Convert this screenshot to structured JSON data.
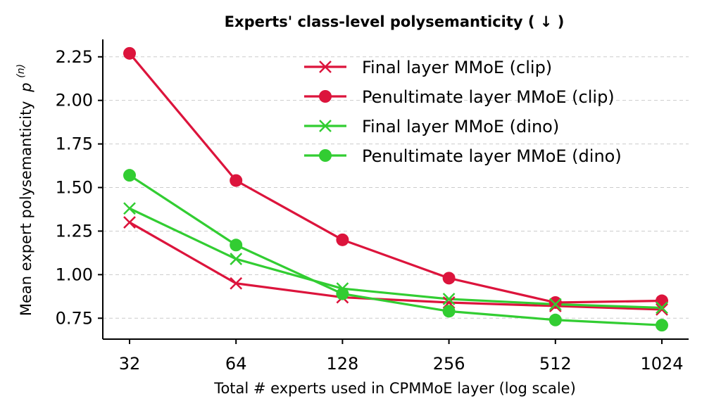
{
  "chart_data": {
    "type": "line",
    "title": "Experts' class-level polysemanticity ( ↓ )",
    "xlabel": "Total # experts used in CPMMoE layer (log scale)",
    "ylabel": "Mean expert polysemanticity",
    "ylabel_symbol": "p",
    "ylabel_superscript": "(n)",
    "x_scale": "log2",
    "categories": [
      "32",
      "64",
      "128",
      "256",
      "512",
      "1024"
    ],
    "x": [
      32,
      64,
      128,
      256,
      512,
      1024
    ],
    "ylim": [
      0.63,
      2.35
    ],
    "yticks": [
      0.75,
      1.0,
      1.25,
      1.5,
      1.75,
      2.0,
      2.25
    ],
    "ytick_labels": [
      "0.75",
      "1.00",
      "1.25",
      "1.50",
      "1.75",
      "2.00",
      "2.25"
    ],
    "grid": "horizontal dashed",
    "legend_position": "top-right",
    "series": [
      {
        "name": "Final layer MMoE (clip)",
        "color": "#dc143c",
        "marker": "x",
        "values": [
          1.3,
          0.95,
          0.87,
          0.84,
          0.82,
          0.8
        ]
      },
      {
        "name": "Penultimate layer MMoE (clip)",
        "color": "#dc143c",
        "marker": "circle",
        "values": [
          2.27,
          1.54,
          1.2,
          0.98,
          0.84,
          0.85
        ]
      },
      {
        "name": "Final layer MMoE (dino)",
        "color": "#32cd32",
        "marker": "x",
        "values": [
          1.38,
          1.09,
          0.92,
          0.86,
          0.83,
          0.81
        ]
      },
      {
        "name": "Penultimate layer MMoE (dino)",
        "color": "#32cd32",
        "marker": "circle",
        "values": [
          1.57,
          1.17,
          0.89,
          0.79,
          0.74,
          0.71
        ]
      }
    ]
  }
}
